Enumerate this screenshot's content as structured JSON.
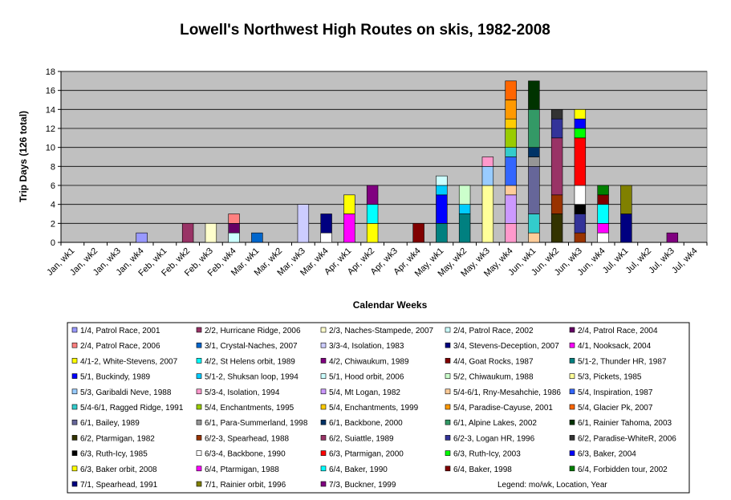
{
  "chart_data": {
    "type": "bar",
    "stacked": true,
    "title": "Lowell's Northwest High Routes on skis, 1982-2008",
    "xlabel": "Calendar Weeks",
    "ylabel": "Trip Days (126 total)",
    "ylim": [
      0,
      18
    ],
    "yticks": [
      0,
      2,
      4,
      6,
      8,
      10,
      12,
      14,
      16,
      18
    ],
    "grid": "horizontal",
    "legend_position": "bottom",
    "legend_note": "Legend: mo/wk, Location, Year",
    "plot_background": "#C0C0C0",
    "categories": [
      "Jan, wk1",
      "Jan, wk2",
      "Jan, wk3",
      "Jan, wk4",
      "Feb, wk1",
      "Feb, wk2",
      "Feb, wk3",
      "Feb, wk4",
      "Mar, wk1",
      "Mar, wk2",
      "Mar, wk3",
      "Mar, wk4",
      "Apr, wk1",
      "Apr, wk2",
      "Apr, wk3",
      "Apr, wk4",
      "May, wk1",
      "May, wk2",
      "May, wk3",
      "May, wk4",
      "Jun, wk1",
      "Jun, wk2",
      "Jun, wk3",
      "Jun, wk4",
      "Jul, wk1",
      "Jul, wk2",
      "Jul, wk3",
      "Jul, wk4"
    ],
    "series": [
      {
        "name": "1/4, Patrol Race, 2001",
        "color": "#9999FF",
        "cat": 3,
        "value": 1
      },
      {
        "name": "2/2, Hurricane Ridge, 2006",
        "color": "#993366",
        "cat": 5,
        "value": 2
      },
      {
        "name": "2/3, Naches-Stampede, 2007",
        "color": "#FFFFCC",
        "cat": 6,
        "value": 2
      },
      {
        "name": "2/4, Patrol Race, 2002",
        "color": "#CCFFFF",
        "cat": 7,
        "value": 1
      },
      {
        "name": "2/4, Patrol Race, 2004",
        "color": "#660066",
        "cat": 7,
        "value": 1
      },
      {
        "name": "2/4, Patrol Race, 2006",
        "color": "#FF8080",
        "cat": 7,
        "value": 1
      },
      {
        "name": "3/1, Crystal-Naches, 2007",
        "color": "#0066CC",
        "cat": 8,
        "value": 1
      },
      {
        "name": "3/3-4, Isolation, 1983",
        "color": "#CCCCFF",
        "cat": 10,
        "value": 4
      },
      {
        "name": "3/4, Stevens-Deception, 2007",
        "color": "#000080",
        "cat": 11,
        "value": 2
      },
      {
        "name": "4/1, Nooksack, 2004",
        "color": "#FF00FF",
        "cat": 12,
        "value": 3
      },
      {
        "name": "4/1-2, White-Stevens, 2007",
        "color": "#FFFF00",
        "cat": 12,
        "value": 2
      },
      {
        "name": "4/2, St Helens orbit, 1989",
        "color": "#00FFFF",
        "cat": 13,
        "value": 2
      },
      {
        "name": "4/2, Chiwaukum, 1989",
        "color": "#800080",
        "cat": 13,
        "value": 2
      },
      {
        "name": "4/4, Goat Rocks, 1987",
        "color": "#800000",
        "cat": 15,
        "value": 2
      },
      {
        "name": "5/1-2, Thunder HR, 1987",
        "color": "#008080",
        "cat": 16,
        "value": 2
      },
      {
        "name": "5/1, Buckindy, 1989",
        "color": "#0000FF",
        "cat": 16,
        "value": 3
      },
      {
        "name": "5/1-2, Shuksan loop, 1994",
        "color": "#00CCFF",
        "cat": 16,
        "value": 1
      },
      {
        "name": "5/1, Hood orbit, 2006",
        "color": "#CCFFFF",
        "cat": 16,
        "value": 1
      },
      {
        "name": "5/2, Chiwaukum, 1988",
        "color": "#CCFFCC",
        "cat": 17,
        "value": 2
      },
      {
        "name": "5/3, Pickets, 1985",
        "color": "#FFFF99",
        "cat": 18,
        "value": 6
      },
      {
        "name": "5/3, Garibaldi Neve, 1988",
        "color": "#99CCFF",
        "cat": 18,
        "value": 2
      },
      {
        "name": "5/3-4, Isolation, 1994",
        "color": "#FF99CC",
        "cat": 18,
        "value": 1
      },
      {
        "name": "5/4, Mt Logan, 1982",
        "color": "#CC99FF",
        "cat": 19,
        "value": 3
      },
      {
        "name": "5/4-6/1, Rny-Mesahchie, 1986",
        "color": "#FFCC99",
        "cat": 19,
        "value": 1
      },
      {
        "name": "5/4, Inspiration, 1987",
        "color": "#3366FF",
        "cat": 19,
        "value": 3
      },
      {
        "name": "5/4-6/1, Ragged Ridge, 1991",
        "color": "#33CCCC",
        "cat": 19,
        "value": 1
      },
      {
        "name": "5/4, Enchantments, 1995",
        "color": "#99CC00",
        "cat": 19,
        "value": 2
      },
      {
        "name": "5/4, Enchantments, 1999",
        "color": "#FFCC00",
        "cat": 19,
        "value": 1
      },
      {
        "name": "5/4, Paradise-Cayuse, 2001",
        "color": "#FF9900",
        "cat": 19,
        "value": 2
      },
      {
        "name": "5/4, Glacier Pk, 2007",
        "color": "#FF6600",
        "cat": 19,
        "value": 2
      },
      {
        "name": "6/1, Bailey, 1989",
        "color": "#666699",
        "cat": 20,
        "value": 5
      },
      {
        "name": "6/1, Para-Summerland, 1998",
        "color": "#969696",
        "cat": 20,
        "value": 1
      },
      {
        "name": "6/1, Backbone, 2000",
        "color": "#003366",
        "cat": 20,
        "value": 1
      },
      {
        "name": "6/1, Alpine Lakes, 2002",
        "color": "#339966",
        "cat": 20,
        "value": 4
      },
      {
        "name": "6/1, Rainier Tahoma, 2003",
        "color": "#003300",
        "cat": 20,
        "value": 3
      },
      {
        "name": "6/2, Ptarmigan, 1982",
        "color": "#333300",
        "cat": 21,
        "value": 3
      },
      {
        "name": "6/2-3, Spearhead, 1988",
        "color": "#993300",
        "cat": 21,
        "value": 2
      },
      {
        "name": "6/2, Suiattle, 1989",
        "color": "#993366",
        "cat": 21,
        "value": 6
      },
      {
        "name": "6/2-3, Logan HR, 1996",
        "color": "#333399",
        "cat": 21,
        "value": 2
      },
      {
        "name": "6/2, Paradise-WhiteR, 2006",
        "color": "#333333",
        "cat": 21,
        "value": 1
      },
      {
        "name": "6/3, Ruth-Icy, 1985",
        "color": "#000000",
        "cat": 22,
        "value": 1
      },
      {
        "name": "6/3-4, Backbone, 1990",
        "color": "#FFFFFF",
        "cat": 22,
        "value": 2
      },
      {
        "name": "6/3, Ptarmigan, 2000",
        "color": "#FF0000",
        "cat": 22,
        "value": 5
      },
      {
        "name": "6/3, Ruth-Icy, 2003",
        "color": "#00FF00",
        "cat": 22,
        "value": 1
      },
      {
        "name": "6/3, Baker, 2004",
        "color": "#0000FF",
        "cat": 22,
        "value": 1
      },
      {
        "name": "6/3, Baker orbit, 2008",
        "color": "#FFFF00",
        "cat": 22,
        "value": 1
      },
      {
        "name": "6/4, Ptarmigan, 1988",
        "color": "#FF00FF",
        "cat": 23,
        "value": 1
      },
      {
        "name": "6/4, Baker, 1990",
        "color": "#00FFFF",
        "cat": 23,
        "value": 2
      },
      {
        "name": "6/4, Baker, 1998",
        "color": "#800000",
        "cat": 23,
        "value": 1
      },
      {
        "name": "6/4, Forbidden tour, 2002",
        "color": "#008000",
        "cat": 23,
        "value": 1
      },
      {
        "name": "7/1, Spearhead, 1991",
        "color": "#000080",
        "cat": 24,
        "value": 3
      },
      {
        "name": "7/1, Rainier orbit, 1996",
        "color": "#808000",
        "cat": 24,
        "value": 3
      },
      {
        "name": "7/3, Buckner, 1999",
        "color": "#800080",
        "cat": 26,
        "value": 1
      }
    ],
    "bars": [
      [],
      [],
      [],
      [
        {
          "s": 0,
          "v": 1
        }
      ],
      [],
      [
        {
          "s": 1,
          "v": 2
        }
      ],
      [
        {
          "s": 2,
          "v": 2
        }
      ],
      [
        {
          "s": 3,
          "v": 1
        },
        {
          "s": 4,
          "v": 1
        },
        {
          "s": 5,
          "v": 1
        }
      ],
      [
        {
          "s": 6,
          "v": 1
        }
      ],
      [],
      [
        {
          "s": 7,
          "v": 4
        }
      ],
      [
        {
          "s": "white",
          "v": 1
        },
        {
          "s": 8,
          "v": 2
        }
      ],
      [
        {
          "s": 9,
          "v": 3
        },
        {
          "s": 10,
          "v": 2
        }
      ],
      [
        {
          "s": 10,
          "v": 2
        },
        {
          "s": 11,
          "v": 2
        },
        {
          "s": 12,
          "v": 2
        }
      ],
      [],
      [
        {
          "s": 13,
          "v": 2
        }
      ],
      [
        {
          "s": 14,
          "v": 2
        },
        {
          "s": 15,
          "v": 3
        },
        {
          "s": 16,
          "v": 1
        },
        {
          "s": 17,
          "v": 1
        }
      ],
      [
        {
          "s": 14,
          "v": 3
        },
        {
          "s": 16,
          "v": 1
        },
        {
          "s": 18,
          "v": 2
        }
      ],
      [
        {
          "s": 19,
          "v": 6
        },
        {
          "s": 20,
          "v": 2
        },
        {
          "s": 21,
          "v": 1
        }
      ],
      [
        {
          "s": 21,
          "v": 2
        },
        {
          "s": 22,
          "v": 3
        },
        {
          "s": 23,
          "v": 1
        },
        {
          "s": 24,
          "v": 3
        },
        {
          "s": 25,
          "v": 1
        },
        {
          "s": 26,
          "v": 2
        },
        {
          "s": 27,
          "v": 1
        },
        {
          "s": 28,
          "v": 2
        },
        {
          "s": 29,
          "v": 2
        }
      ],
      [
        {
          "s": 23,
          "v": 1
        },
        {
          "s": 25,
          "v": 2
        },
        {
          "s": 30,
          "v": 5
        },
        {
          "s": 31,
          "v": 1
        },
        {
          "s": 32,
          "v": 1
        },
        {
          "s": 33,
          "v": 4
        },
        {
          "s": 34,
          "v": 3
        }
      ],
      [
        {
          "s": 35,
          "v": 3
        },
        {
          "s": 36,
          "v": 2
        },
        {
          "s": 37,
          "v": 6
        },
        {
          "s": 38,
          "v": 2
        },
        {
          "s": 39,
          "v": 1
        }
      ],
      [
        {
          "s": 36,
          "v": 1
        },
        {
          "s": 38,
          "v": 2
        },
        {
          "s": 40,
          "v": 1
        },
        {
          "s": 41,
          "v": 2
        },
        {
          "s": 42,
          "v": 5
        },
        {
          "s": 43,
          "v": 1
        },
        {
          "s": 44,
          "v": 1
        },
        {
          "s": 45,
          "v": 1
        }
      ],
      [
        {
          "s": 41,
          "v": 1
        },
        {
          "s": 46,
          "v": 1
        },
        {
          "s": 47,
          "v": 2
        },
        {
          "s": 48,
          "v": 1
        },
        {
          "s": 49,
          "v": 1
        }
      ],
      [
        {
          "s": 50,
          "v": 3
        },
        {
          "s": 51,
          "v": 3
        }
      ],
      [],
      [
        {
          "s": 52,
          "v": 1
        }
      ],
      []
    ]
  }
}
